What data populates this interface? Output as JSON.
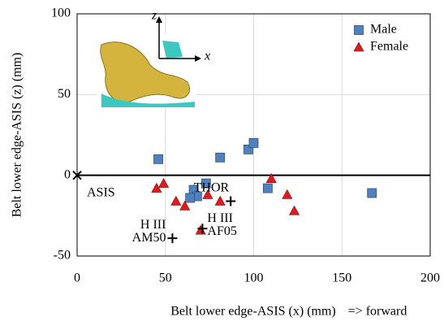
{
  "chart_data": {
    "type": "scatter",
    "xlabel": "Belt lower edge-ASIS (x) (mm)",
    "xlabel_note": "=> forward",
    "ylabel": "Belt lower edge-ASIS (z) (mm)",
    "xlim": [
      0,
      200
    ],
    "xticks": [
      0,
      50,
      100,
      150,
      200
    ],
    "ylim": [
      -50,
      100
    ],
    "yticks": [
      -50,
      0,
      50,
      100
    ],
    "grid": true,
    "legend": "upper right",
    "series": [
      {
        "name": "Male",
        "color": "#4f81bd",
        "marker": "square",
        "x": [
          46,
          81,
          97,
          100,
          73,
          66,
          68,
          64,
          108,
          167
        ],
        "values": [
          10,
          11,
          16,
          20,
          -5,
          -9,
          -13,
          -14,
          -8,
          -11
        ]
      },
      {
        "name": "Female",
        "color": "#e31a1c",
        "marker": "triangle",
        "x": [
          45,
          49,
          56,
          61,
          70,
          74,
          81,
          110,
          119,
          123
        ],
        "values": [
          -8,
          -5,
          -16,
          -19,
          -34,
          -12,
          -16,
          -2,
          -12,
          -22
        ]
      }
    ],
    "dummies": [
      {
        "label": "ASIS",
        "x": 0,
        "y": 0
      },
      {
        "label": "THOR",
        "x": 87,
        "y": -16
      },
      {
        "label": "H III\nAM50",
        "x": 54,
        "y": -39
      },
      {
        "label": "H III\nAF05",
        "x": 71,
        "y": -33
      }
    ],
    "inset_axes": [
      "z",
      "x"
    ]
  }
}
